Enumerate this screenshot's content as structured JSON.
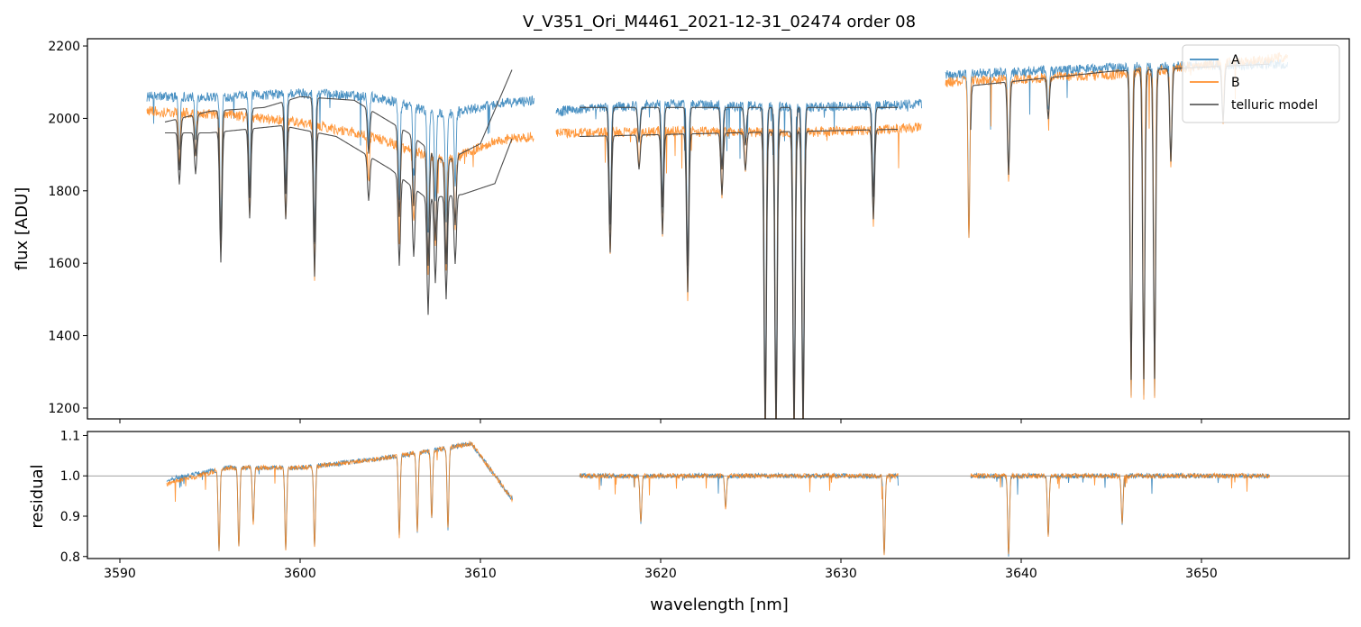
{
  "chart_data": {
    "type": "line",
    "title": "V_V351_Ori_M4461_2021-12-31_02474  order 08",
    "xlabel": "wavelength [nm]",
    "xlim": [
      3588.2,
      3658.2
    ],
    "x_ticks": [
      3590,
      3600,
      3610,
      3620,
      3630,
      3640,
      3650
    ],
    "legend_position": "top-right",
    "colors": {
      "A": "#1f77b4",
      "B": "#ff7f0e",
      "telluric": "#444444",
      "grid": "#808080"
    },
    "flux_panel": {
      "ylabel": "flux [ADU]",
      "ylim": [
        1170,
        2220
      ],
      "y_ticks": [
        1200,
        1400,
        1600,
        1800,
        2000,
        2200
      ],
      "series": [
        {
          "name": "A",
          "segments": [
            {
              "x0": 3591.5,
              "x1": 3613.0,
              "continuum": [
                [
                  3591.5,
                  2060
                ],
                [
                  3596,
                  2060
                ],
                [
                  3600,
                  2070
                ],
                [
                  3604,
                  2060
                ],
                [
                  3608,
                  2010
                ],
                [
                  3611,
                  2040
                ],
                [
                  3613,
                  2050
                ]
              ]
            },
            {
              "x0": 3614.2,
              "x1": 3634.5,
              "continuum": [
                [
                  3614.2,
                  2020
                ],
                [
                  3620,
                  2040
                ],
                [
                  3628,
                  2030
                ],
                [
                  3634.5,
                  2040
                ]
              ]
            },
            {
              "x0": 3635.8,
              "x1": 3654.8,
              "continuum": [
                [
                  3635.8,
                  2120
                ],
                [
                  3645,
                  2140
                ],
                [
                  3654.8,
                  2150
                ]
              ]
            }
          ]
        },
        {
          "name": "B",
          "segments": [
            {
              "x0": 3591.5,
              "x1": 3613.0,
              "continuum": [
                [
                  3591.5,
                  2020
                ],
                [
                  3596,
                  2010
                ],
                [
                  3600,
                  1990
                ],
                [
                  3604,
                  1950
                ],
                [
                  3608,
                  1880
                ],
                [
                  3611,
                  1940
                ],
                [
                  3613,
                  1950
                ]
              ]
            },
            {
              "x0": 3614.2,
              "x1": 3634.5,
              "continuum": [
                [
                  3614.2,
                  1960
                ],
                [
                  3620,
                  1965
                ],
                [
                  3628,
                  1960
                ],
                [
                  3634.5,
                  1975
                ]
              ]
            },
            {
              "x0": 3635.8,
              "x1": 3654.8,
              "continuum": [
                [
                  3635.8,
                  2100
                ],
                [
                  3645,
                  2120
                ],
                [
                  3654.8,
                  2170
                ]
              ]
            }
          ]
        },
        {
          "name": "telluric model",
          "segments": [
            {
              "x0": 3592.5,
              "x1": 3611.8,
              "continuum": [
                [
                  3592.5,
                  1990
                ],
                [
                  3595,
                  2020
                ],
                [
                  3598,
                  2030
                ],
                [
                  3600,
                  2060
                ],
                [
                  3603,
                  2050
                ],
                [
                  3606,
                  1960
                ],
                [
                  3608,
                  1880
                ],
                [
                  3610,
                  1930
                ],
                [
                  3611.8,
                  2140
                ]
              ]
            },
            {
              "x0": 3592.5,
              "x1": 3611.8,
              "continuum": [
                [
                  3592.5,
                  1960
                ],
                [
                  3595,
                  1960
                ],
                [
                  3599,
                  1980
                ],
                [
                  3602,
                  1950
                ],
                [
                  3605,
                  1860
                ],
                [
                  3607,
                  1780
                ],
                [
                  3609,
                  1790
                ],
                [
                  3610.8,
                  1820
                ],
                [
                  3611.8,
                  1950
                ]
              ]
            },
            {
              "x0": 3615.5,
              "x1": 3633.2,
              "continuum": [
                [
                  3615.5,
                  2030
                ],
                [
                  3624,
                  2030
                ],
                [
                  3633.2,
                  2030
                ]
              ]
            },
            {
              "x0": 3615.5,
              "x1": 3633.2,
              "continuum": [
                [
                  3615.5,
                  1950
                ],
                [
                  3624,
                  1960
                ],
                [
                  3633.2,
                  1970
                ]
              ]
            },
            {
              "x0": 3637.2,
              "x1": 3653.8,
              "continuum": [
                [
                  3637.2,
                  2090
                ],
                [
                  3645,
                  2130
                ],
                [
                  3653.8,
                  2150
                ]
              ]
            }
          ]
        }
      ],
      "absorption_lines": [
        [
          3593.3,
          150
        ],
        [
          3594.2,
          120
        ],
        [
          3595.6,
          380
        ],
        [
          3597.2,
          260
        ],
        [
          3599.2,
          270
        ],
        [
          3600.8,
          420
        ],
        [
          3603.8,
          130
        ],
        [
          3605.5,
          260
        ],
        [
          3606.3,
          200
        ],
        [
          3607.1,
          340
        ],
        [
          3607.5,
          250
        ],
        [
          3608.1,
          300
        ],
        [
          3608.6,
          200
        ],
        [
          3617.2,
          340
        ],
        [
          3618.8,
          100
        ],
        [
          3620.1,
          290
        ],
        [
          3621.5,
          460
        ],
        [
          3623.4,
          180
        ],
        [
          3624.7,
          110
        ],
        [
          3625.8,
          900
        ],
        [
          3626.4,
          900
        ],
        [
          3627.4,
          900
        ],
        [
          3627.9,
          900
        ],
        [
          3631.8,
          260
        ],
        [
          3637.1,
          440
        ],
        [
          3639.3,
          270
        ],
        [
          3641.5,
          120
        ],
        [
          3646.1,
          900
        ],
        [
          3646.8,
          900
        ],
        [
          3647.4,
          900
        ],
        [
          3648.3,
          270
        ],
        [
          3651.2,
          160
        ]
      ]
    },
    "residual_panel": {
      "ylabel": "residual",
      "ylim": [
        0.795,
        1.11
      ],
      "y_ticks": [
        0.8,
        0.9,
        1.0,
        1.1
      ],
      "reference_line": 1.0,
      "series": [
        {
          "name": "A",
          "segments": [
            {
              "x0": 3592.6,
              "x1": 3611.8,
              "continuum": [
                [
                  3592.6,
                  0.99
                ],
                [
                  3596,
                  1.02
                ],
                [
                  3600,
                  1.02
                ],
                [
                  3604,
                  1.04
                ],
                [
                  3607,
                  1.06
                ],
                [
                  3609.5,
                  1.08
                ],
                [
                  3611.8,
                  0.94
                ]
              ]
            },
            {
              "x0": 3615.5,
              "x1": 3633.2,
              "continuum": [
                [
                  3615.5,
                  1.0
                ],
                [
                  3633.2,
                  1.0
                ]
              ]
            },
            {
              "x0": 3637.2,
              "x1": 3653.8,
              "continuum": [
                [
                  3637.2,
                  1.0
                ],
                [
                  3653.8,
                  1.0
                ]
              ]
            }
          ]
        },
        {
          "name": "B",
          "segments": [
            {
              "x0": 3592.6,
              "x1": 3611.8,
              "continuum": [
                [
                  3592.6,
                  0.98
                ],
                [
                  3596,
                  1.02
                ],
                [
                  3600,
                  1.02
                ],
                [
                  3604,
                  1.04
                ],
                [
                  3607,
                  1.06
                ],
                [
                  3609.5,
                  1.08
                ],
                [
                  3611.8,
                  0.94
                ]
              ]
            },
            {
              "x0": 3615.5,
              "x1": 3633.2,
              "continuum": [
                [
                  3615.5,
                  1.0
                ],
                [
                  3633.2,
                  1.0
                ]
              ]
            },
            {
              "x0": 3637.2,
              "x1": 3653.8,
              "continuum": [
                [
                  3637.2,
                  1.0
                ],
                [
                  3653.8,
                  1.0
                ]
              ]
            }
          ]
        }
      ],
      "absorption_lines": [
        [
          3595.5,
          0.2
        ],
        [
          3597.4,
          0.14
        ],
        [
          3599.2,
          0.2
        ],
        [
          3600.8,
          0.2
        ],
        [
          3605.5,
          0.2
        ],
        [
          3606.5,
          0.2
        ],
        [
          3607.3,
          0.17
        ],
        [
          3608.2,
          0.2
        ],
        [
          3618.9,
          0.12
        ],
        [
          3623.6,
          0.08
        ],
        [
          3632.4,
          0.2
        ],
        [
          3639.3,
          0.2
        ],
        [
          3641.5,
          0.15
        ],
        [
          3645.6,
          0.12
        ],
        [
          3596.6,
          0.2
        ]
      ]
    }
  }
}
